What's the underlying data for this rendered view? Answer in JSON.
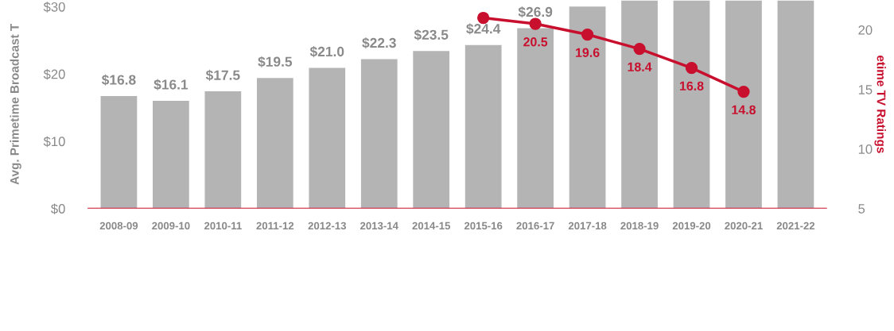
{
  "chart_data": {
    "type": "bar",
    "ylabel": "Avg. Primetime Broadcast T",
    "y2label": "etime TV Ratings",
    "categories": [
      "2008-09",
      "2009-10",
      "2010-11",
      "2011-12",
      "2012-13",
      "2013-14",
      "2014-15",
      "2015-16",
      "2016-17",
      "2017-18",
      "2018-19",
      "2019-20",
      "2020-21",
      "2021-22"
    ],
    "series": [
      {
        "color": "#b4b4b4",
        "values": [
          16.8,
          16.1,
          17.5,
          19.5,
          21.0,
          22.3,
          23.5,
          24.4,
          26.9,
          30.1,
          31,
          31,
          31,
          31
        ],
        "value_labels": [
          "$16.8",
          "$16.1",
          "$17.5",
          "$19.5",
          "$21.0",
          "$22.3",
          "$23.5",
          "$24.4",
          "$26.9",
          null,
          null,
          null,
          null,
          null
        ]
      },
      {
        "type": "line",
        "axis": "y2",
        "color": "#c8102e",
        "marker": "circle",
        "values": [
          null,
          null,
          null,
          null,
          null,
          null,
          null,
          21,
          20.5,
          19.6,
          18.4,
          16.8,
          14.8,
          null
        ],
        "value_labels": [
          null,
          null,
          null,
          null,
          null,
          null,
          null,
          null,
          "20.5",
          "19.6",
          "18.4",
          "16.8",
          "14.8",
          null
        ]
      }
    ],
    "ylim": [
      0,
      31
    ],
    "yticks": [
      {
        "value": 0,
        "label": "$0"
      },
      {
        "value": 10,
        "label": "$10"
      },
      {
        "value": 20,
        "label": "$20"
      },
      {
        "value": 30,
        "label": "$30"
      }
    ],
    "y2lim": [
      5,
      22.5
    ],
    "y2ticks": [
      5,
      10,
      15,
      20
    ],
    "grid": false,
    "legend": false
  }
}
